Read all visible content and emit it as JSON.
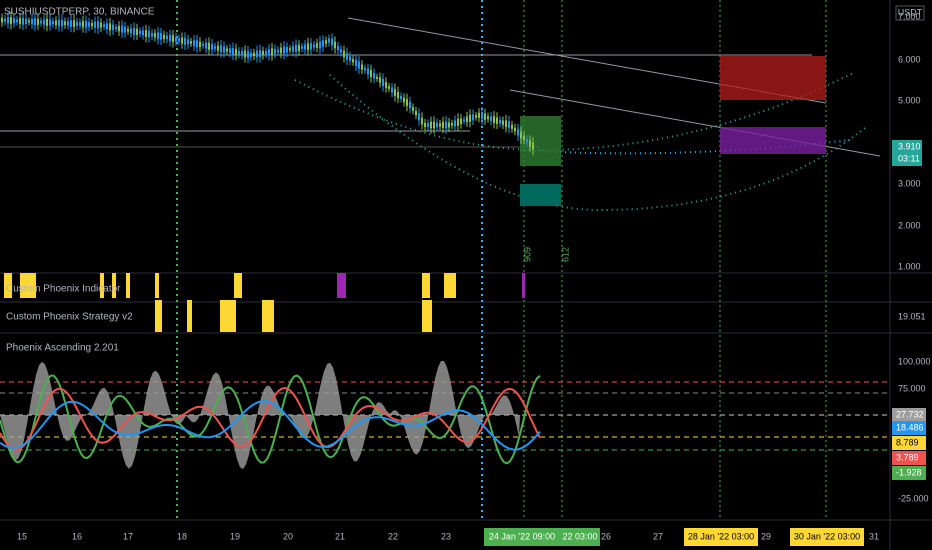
{
  "header": {
    "symbol": "SUSHIUSDTPERP, 30, BINANCE",
    "currency": "USDT"
  },
  "price_axis": {
    "labels": [
      "7.000",
      "6.000",
      "5.000",
      "3.000",
      "2.000",
      "1.000"
    ],
    "last_price": "3.910",
    "countdown": "03:11"
  },
  "panels": {
    "indicator": "Custom Phoenix Indicator",
    "strategy": "Custom Phoenix Strategy v2",
    "strategy_value": "19.051",
    "oscillator": "Phoenix Ascending 2.201"
  },
  "oscillator_axis": {
    "labels": [
      "100.000",
      "75.000",
      "-25.000"
    ],
    "badges": [
      "27.732",
      "18.486",
      "8.789",
      "3.789",
      "-1.928"
    ]
  },
  "vertical_labels": [
    "909",
    "612"
  ],
  "time_axis": {
    "labels": [
      "15",
      "16",
      "17",
      "18",
      "19",
      "20",
      "21",
      "22",
      "23",
      "26",
      "27",
      "29",
      "31"
    ],
    "highlights": [
      "24 Jan '22   09:00",
      "22   03:00",
      "28 Jan '22   03:00",
      "30 Jan '22   03:00"
    ]
  }
}
